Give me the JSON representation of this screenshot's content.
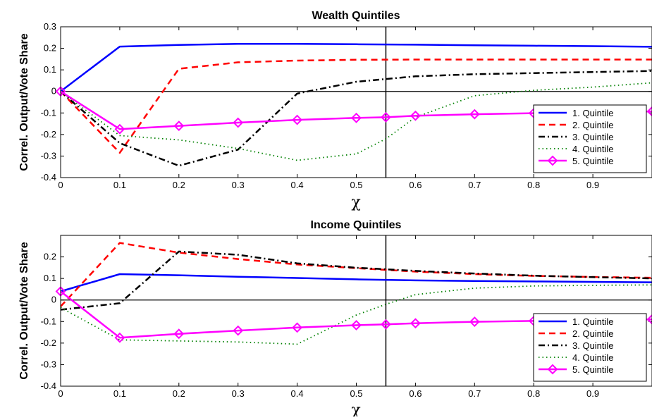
{
  "chart_data": [
    {
      "type": "line",
      "title": "Wealth Quintiles",
      "xlabel": "χ",
      "ylabel": "Correl. Output/Vote Share",
      "xlim": [
        0,
        1
      ],
      "ylim": [
        -0.4,
        0.3
      ],
      "xticks": [
        0,
        0.1,
        0.2,
        0.3,
        0.4,
        0.5,
        0.6,
        0.7,
        0.8,
        0.9
      ],
      "xtick_labels": [
        "0",
        "0.1",
        "0.2",
        "0.3",
        "0.4",
        "0.5",
        "0.6",
        "0.7",
        "0.8",
        "0.9"
      ],
      "yticks": [
        -0.4,
        -0.3,
        -0.2,
        -0.1,
        0,
        0.1,
        0.2,
        0.3
      ],
      "ytick_labels": [
        "-0.4",
        "-0.3",
        "-0.2",
        "-0.1",
        "0",
        "0.1",
        "0.2",
        "0.3"
      ],
      "vline_x": 0.55,
      "hline_y": 0,
      "legend_position": "right",
      "series": [
        {
          "name": "1. Quintile",
          "color": "#0000ff",
          "style": "solid",
          "marker": "none",
          "x": [
            0,
            0.1,
            0.2,
            0.3,
            0.4,
            0.5,
            0.6,
            0.7,
            0.8,
            0.9,
            1.0
          ],
          "y": [
            0,
            0.208,
            0.216,
            0.221,
            0.221,
            0.219,
            0.217,
            0.214,
            0.212,
            0.21,
            0.207
          ]
        },
        {
          "name": "2. Quintile",
          "color": "#ff0000",
          "style": "dash",
          "marker": "none",
          "x": [
            0,
            0.1,
            0.15,
            0.2,
            0.3,
            0.4,
            0.5,
            0.6,
            0.7,
            0.8,
            0.9,
            1.0
          ],
          "y": [
            0,
            -0.285,
            -0.09,
            0.105,
            0.135,
            0.143,
            0.147,
            0.148,
            0.148,
            0.148,
            0.148,
            0.148
          ]
        },
        {
          "name": "3. Quintile",
          "color": "#000000",
          "style": "dashdot",
          "marker": "none",
          "x": [
            0,
            0.1,
            0.2,
            0.3,
            0.4,
            0.5,
            0.6,
            0.7,
            0.8,
            0.9,
            1.0
          ],
          "y": [
            0,
            -0.24,
            -0.345,
            -0.27,
            -0.01,
            0.045,
            0.07,
            0.08,
            0.085,
            0.09,
            0.095
          ]
        },
        {
          "name": "4. Quintile",
          "color": "#008000",
          "style": "dot",
          "marker": "none",
          "x": [
            0,
            0.1,
            0.2,
            0.3,
            0.4,
            0.5,
            0.55,
            0.6,
            0.7,
            0.8,
            0.9,
            1.0
          ],
          "y": [
            0,
            -0.205,
            -0.225,
            -0.265,
            -0.32,
            -0.29,
            -0.22,
            -0.12,
            -0.02,
            0.005,
            0.02,
            0.04
          ]
        },
        {
          "name": "5. Quintile",
          "color": "#ff00ff",
          "style": "solid",
          "marker": "diamond",
          "x": [
            0,
            0.1,
            0.2,
            0.3,
            0.4,
            0.5,
            0.55,
            0.6,
            0.7,
            0.8,
            0.9,
            1.0
          ],
          "y": [
            0,
            -0.175,
            -0.16,
            -0.145,
            -0.132,
            -0.123,
            -0.12,
            -0.113,
            -0.106,
            -0.101,
            -0.097,
            -0.093
          ]
        }
      ]
    },
    {
      "type": "line",
      "title": "Income Quintiles",
      "xlabel": "χ",
      "ylabel": "Correl. Output/Vote Share",
      "xlim": [
        0,
        1
      ],
      "ylim": [
        -0.4,
        0.3
      ],
      "xticks": [
        0,
        0.1,
        0.2,
        0.3,
        0.4,
        0.5,
        0.6,
        0.7,
        0.8,
        0.9
      ],
      "xtick_labels": [
        "0",
        "0.1",
        "0.2",
        "0.3",
        "0.4",
        "0.5",
        "0.6",
        "0.7",
        "0.8",
        "0.9"
      ],
      "yticks": [
        -0.4,
        -0.3,
        -0.2,
        -0.1,
        0,
        0.1,
        0.2
      ],
      "ytick_labels": [
        "-0.4",
        "-0.3",
        "-0.2",
        "-0.1",
        "0",
        "0.1",
        "0.2"
      ],
      "vline_x": 0.55,
      "hline_y": 0,
      "legend_position": "bottom-right",
      "series": [
        {
          "name": "1. Quintile",
          "color": "#0000ff",
          "style": "solid",
          "marker": "none",
          "x": [
            0,
            0.1,
            0.2,
            0.3,
            0.4,
            0.5,
            0.6,
            0.7,
            0.8,
            0.9,
            1.0
          ],
          "y": [
            0.04,
            0.12,
            0.115,
            0.108,
            0.102,
            0.096,
            0.091,
            0.088,
            0.086,
            0.084,
            0.082
          ]
        },
        {
          "name": "2. Quintile",
          "color": "#ff0000",
          "style": "dash",
          "marker": "none",
          "x": [
            0,
            0.1,
            0.2,
            0.3,
            0.4,
            0.5,
            0.6,
            0.7,
            0.8,
            0.9,
            1.0
          ],
          "y": [
            -0.03,
            0.265,
            0.22,
            0.19,
            0.165,
            0.148,
            0.132,
            0.12,
            0.112,
            0.107,
            0.103
          ]
        },
        {
          "name": "3. Quintile",
          "color": "#000000",
          "style": "dashdot",
          "marker": "none",
          "x": [
            0,
            0.1,
            0.2,
            0.3,
            0.4,
            0.5,
            0.6,
            0.7,
            0.8,
            0.9,
            1.0
          ],
          "y": [
            -0.045,
            -0.015,
            0.225,
            0.21,
            0.17,
            0.15,
            0.135,
            0.123,
            0.113,
            0.106,
            0.1
          ]
        },
        {
          "name": "4. Quintile",
          "color": "#008000",
          "style": "dot",
          "marker": "none",
          "x": [
            0,
            0.1,
            0.2,
            0.3,
            0.4,
            0.5,
            0.55,
            0.6,
            0.7,
            0.8,
            0.9,
            1.0
          ],
          "y": [
            -0.035,
            -0.185,
            -0.19,
            -0.195,
            -0.205,
            -0.07,
            -0.02,
            0.025,
            0.055,
            0.065,
            0.068,
            0.07
          ]
        },
        {
          "name": "5. Quintile",
          "color": "#ff00ff",
          "style": "solid",
          "marker": "diamond",
          "x": [
            0,
            0.1,
            0.2,
            0.3,
            0.4,
            0.5,
            0.55,
            0.6,
            0.7,
            0.8,
            0.9,
            1.0
          ],
          "y": [
            0.04,
            -0.175,
            -0.157,
            -0.142,
            -0.128,
            -0.117,
            -0.113,
            -0.108,
            -0.101,
            -0.097,
            -0.094,
            -0.09
          ]
        }
      ]
    }
  ]
}
